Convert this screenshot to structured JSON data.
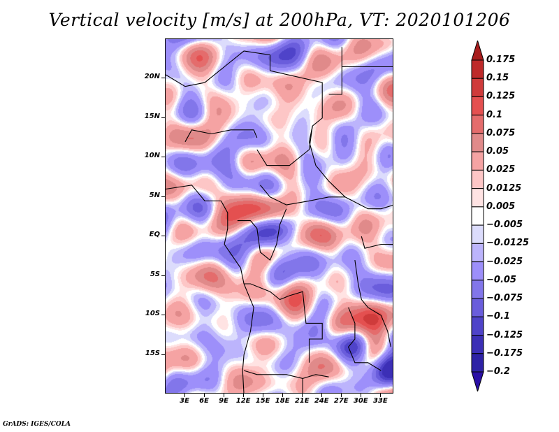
{
  "title": "Vertical velocity [m/s] at 200hPa, VT: 2020101206",
  "footer": "GrADS: IGES/COLA",
  "map": {
    "projection": "latlon",
    "lon_range": [
      0,
      35
    ],
    "lat_range": [
      -20,
      25
    ],
    "variable": "Vertical velocity",
    "units": "m/s",
    "level": "200hPa",
    "valid_time": "2020101206",
    "features": [
      "country-borders",
      "coastlines",
      "lakes"
    ],
    "y_ticks": [
      {
        "label": "20N",
        "lat": 20
      },
      {
        "label": "15N",
        "lat": 15
      },
      {
        "label": "10N",
        "lat": 10
      },
      {
        "label": "5N",
        "lat": 5
      },
      {
        "label": "EQ",
        "lat": 0
      },
      {
        "label": "5S",
        "lat": -5
      },
      {
        "label": "10S",
        "lat": -10
      },
      {
        "label": "15S",
        "lat": -15
      }
    ],
    "x_ticks": [
      {
        "label": "3E",
        "lon": 3
      },
      {
        "label": "6E",
        "lon": 6
      },
      {
        "label": "9E",
        "lon": 9
      },
      {
        "label": "12E",
        "lon": 12
      },
      {
        "label": "15E",
        "lon": 15
      },
      {
        "label": "18E",
        "lon": 18
      },
      {
        "label": "21E",
        "lon": 21
      },
      {
        "label": "24E",
        "lon": 24
      },
      {
        "label": "27E",
        "lon": 27
      },
      {
        "label": "30E",
        "lon": 30
      },
      {
        "label": "33E",
        "lon": 33
      }
    ]
  },
  "colorbar": {
    "extend": "both",
    "labels": [
      "0.175",
      "0.15",
      "0.125",
      "0.1",
      "0.075",
      "0.05",
      "0.025",
      "0.0125",
      "0.005",
      "−0.005",
      "−0.0125",
      "−0.025",
      "−0.05",
      "−0.075",
      "−0.1",
      "−0.125",
      "−0.175",
      "−0.2"
    ],
    "levels": [
      0.175,
      0.15,
      0.125,
      0.1,
      0.075,
      0.05,
      0.025,
      0.0125,
      0.005,
      -0.005,
      -0.0125,
      -0.025,
      -0.05,
      -0.075,
      -0.1,
      -0.125,
      -0.175,
      -0.2
    ],
    "colors": [
      "#a81c1c",
      "#be2a2a",
      "#cf3b3b",
      "#e45050",
      "#e46c6c",
      "#e08a8a",
      "#f5a3a3",
      "#fdc6c6",
      "#ffe3e3",
      "#ffffff",
      "#dcdcfc",
      "#bcb4fc",
      "#9d8ffa",
      "#8276ea",
      "#6a5ddc",
      "#4f43c9",
      "#3c2fb6",
      "#2e22a6",
      "#2a0ea6"
    ]
  }
}
